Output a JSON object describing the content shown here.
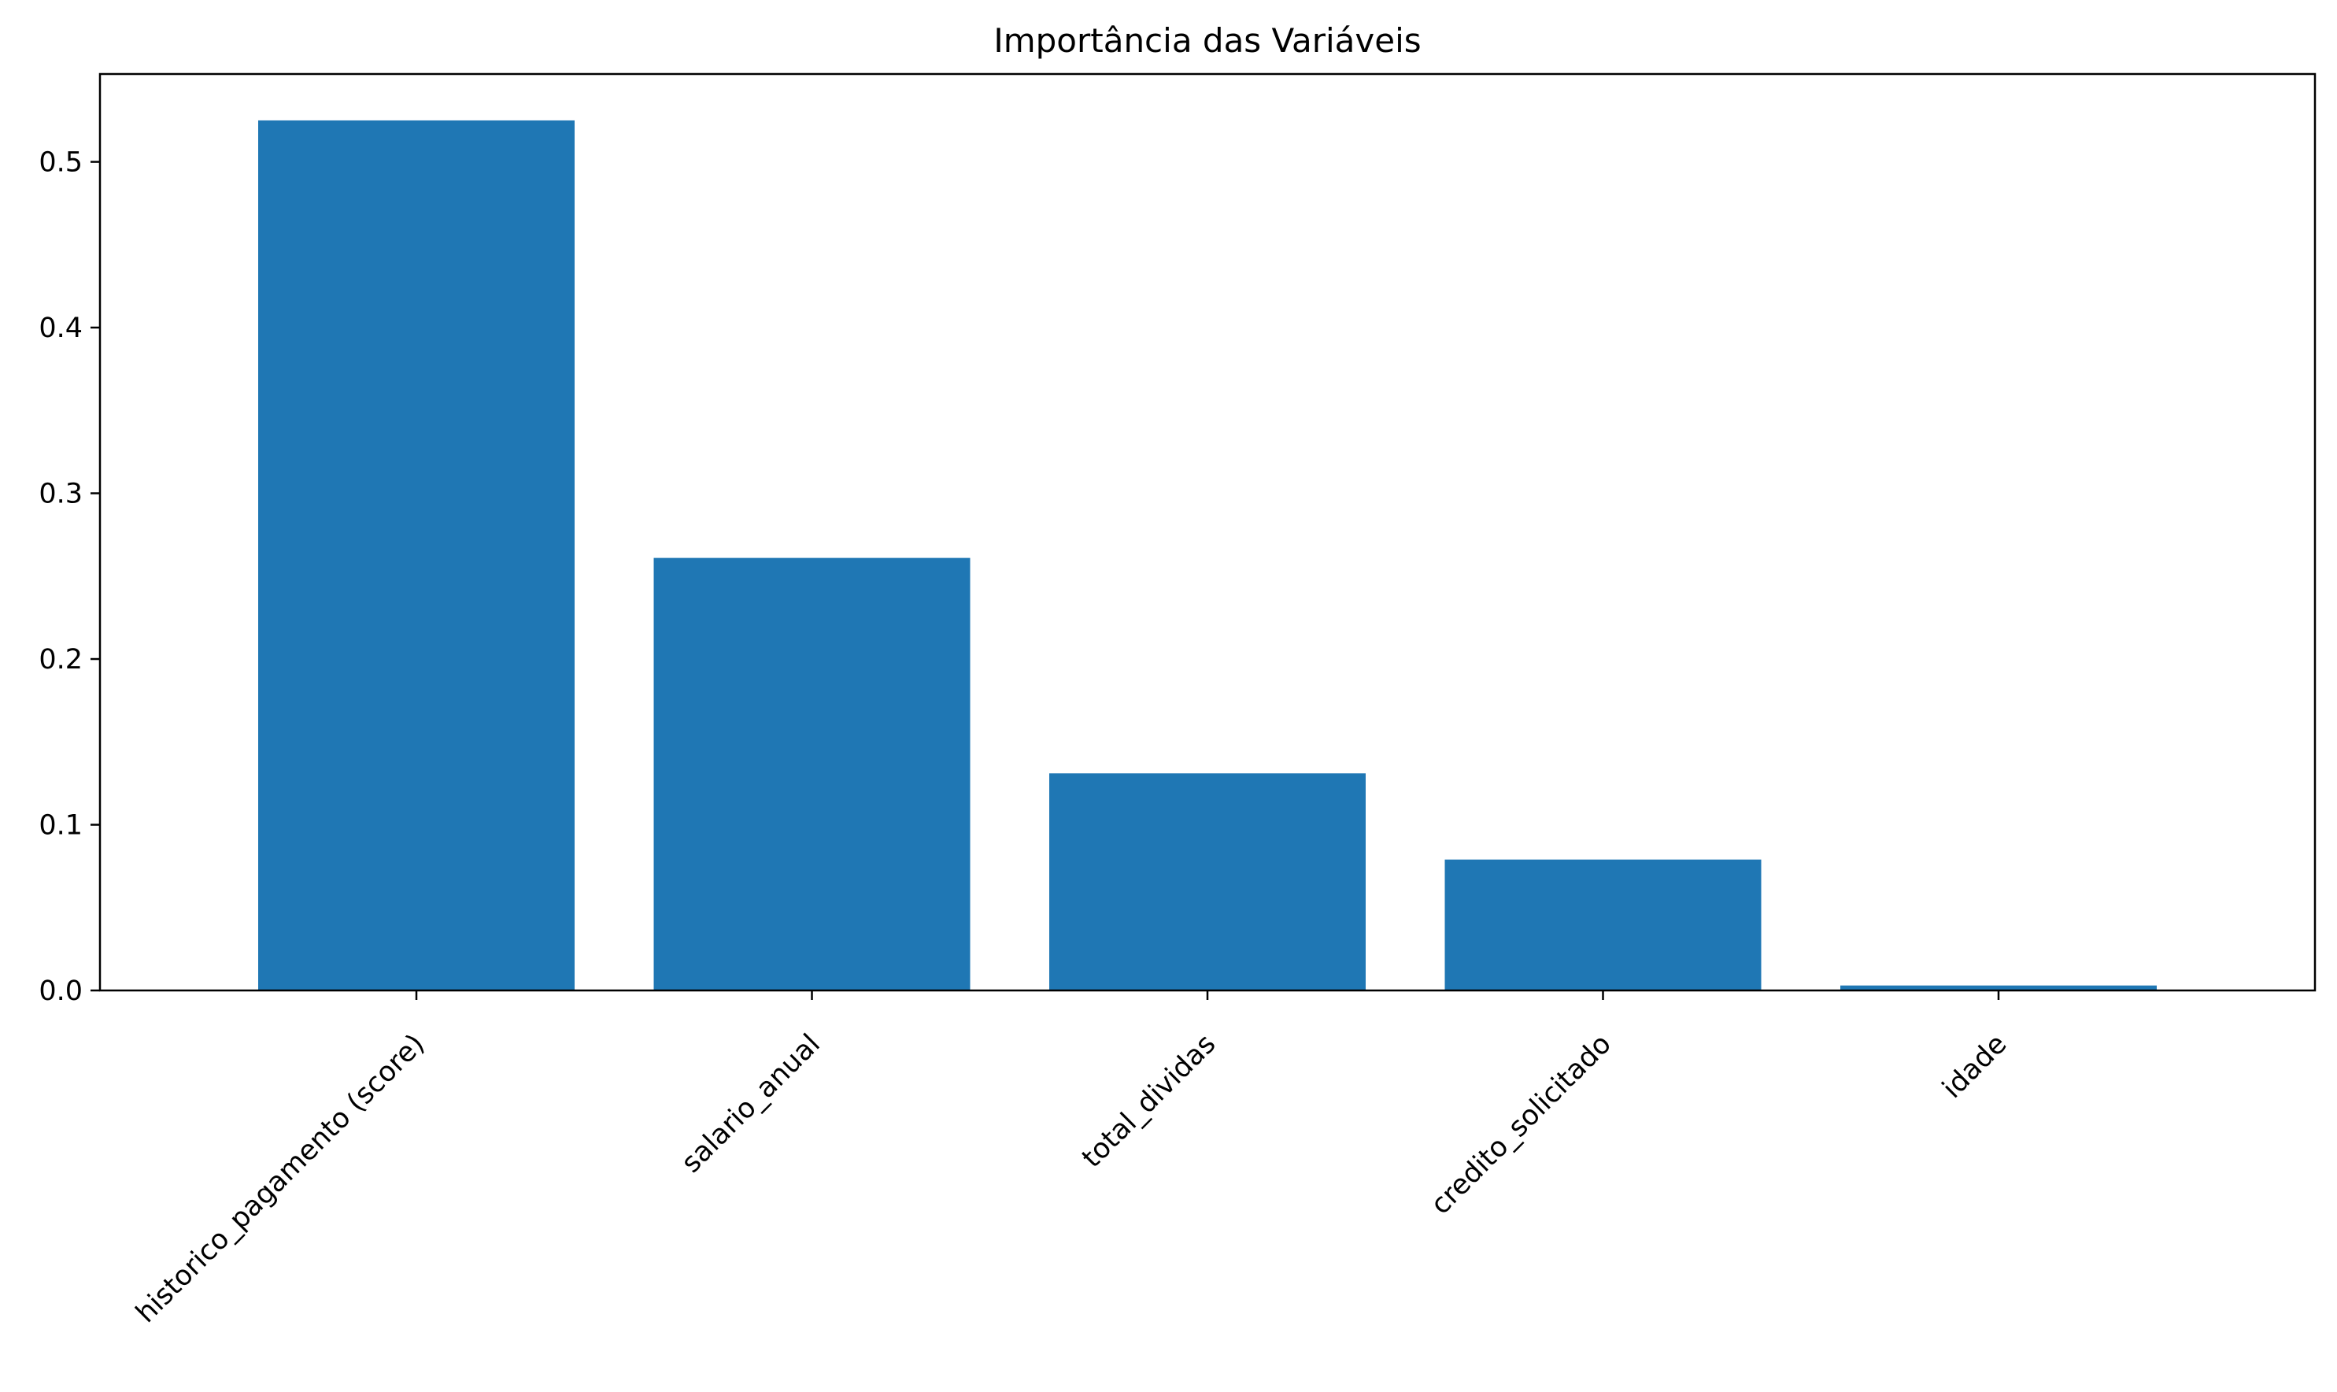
{
  "chart_data": {
    "type": "bar",
    "title": "Importância das Variáveis",
    "xlabel": "",
    "ylabel": "",
    "categories": [
      "historico_pagamento (score)",
      "salario_anual",
      "total_dividas",
      "credito_solicitado",
      "idade"
    ],
    "values": [
      0.525,
      0.261,
      0.131,
      0.079,
      0.003
    ],
    "ylim": [
      0,
      0.553
    ],
    "yticks": [
      0.0,
      0.1,
      0.2,
      0.3,
      0.4,
      0.5
    ],
    "ytick_labels": [
      "0.0",
      "0.1",
      "0.2",
      "0.3",
      "0.4",
      "0.5"
    ],
    "bar_color": "#1f77b4",
    "grid": false,
    "legend": "none",
    "x_tick_rotation": "45 degrees"
  }
}
